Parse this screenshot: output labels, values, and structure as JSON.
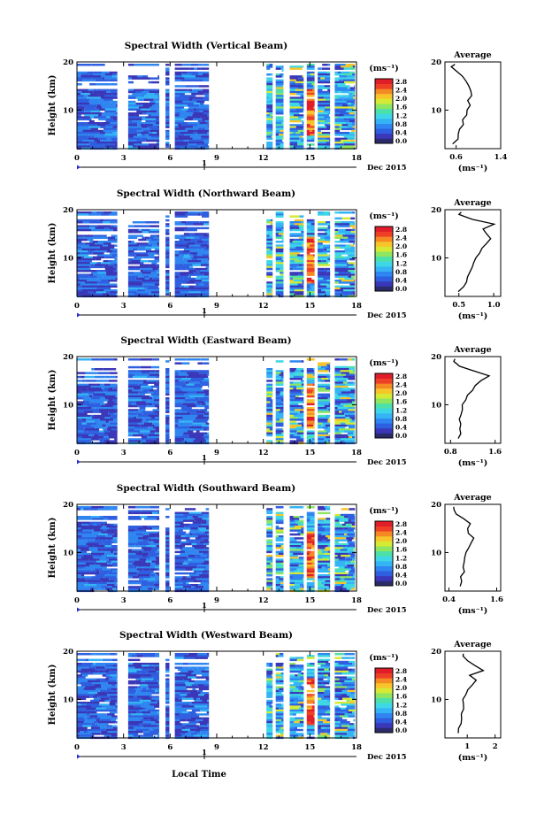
{
  "figure": {
    "xlabel": "Local Time",
    "date_label": "Dec 2015",
    "day_marker": "1",
    "colorbar_unit": "(ms⁻¹)",
    "colorbar_ticks": [
      "0.0",
      "0.4",
      "0.8",
      "1.2",
      "1.6",
      "2.0",
      "2.4",
      "2.8"
    ],
    "profile_title": "Average",
    "profile_xlabel": "(ms⁻¹)",
    "ylabel": "Height (km)",
    "colorscale": [
      "#2b2b6b",
      "#3a37b8",
      "#2f5fe0",
      "#2f86f0",
      "#35b4f5",
      "#3ed7e6",
      "#4de0a8",
      "#8ee660",
      "#d6ea35",
      "#f7c52a",
      "#f58a25",
      "#ee4027",
      "#e01e2a"
    ]
  },
  "chart_data": [
    {
      "type": "heatmap",
      "title": "Spectral Width (Vertical Beam)",
      "x_ticks": [
        "0",
        "3",
        "6",
        "9",
        "12",
        "15",
        "18"
      ],
      "x_tick_values": [
        0,
        3,
        6,
        9,
        12,
        15,
        18
      ],
      "y_ticks": [
        "10",
        "20"
      ],
      "y_tick_values": [
        10,
        20
      ],
      "xlim": [
        0,
        18
      ],
      "ylim": [
        2,
        20
      ],
      "clim": [
        0,
        3.0
      ],
      "data_segments_hours": [
        [
          0,
          2.6
        ],
        [
          3.3,
          5.3
        ],
        [
          5.7,
          5.95
        ],
        [
          6.3,
          8.5
        ],
        [
          12.2,
          12.6
        ],
        [
          12.8,
          13.3
        ],
        [
          13.7,
          14.6
        ],
        [
          14.8,
          15.3
        ],
        [
          15.5,
          16.3
        ],
        [
          16.6,
          17.9
        ]
      ],
      "profile": {
        "title": "Average",
        "x_ticks": [
          "0.6",
          "1.4"
        ],
        "x_tick_values": [
          0.6,
          1.4
        ],
        "xlim": [
          0.4,
          1.4
        ],
        "heights": [
          3,
          4,
          5,
          6,
          7,
          8,
          9,
          10,
          11,
          12,
          13,
          14,
          15,
          16,
          17,
          18,
          19,
          19.5
        ],
        "values": [
          0.55,
          0.62,
          0.66,
          0.66,
          0.72,
          0.74,
          0.77,
          0.8,
          0.83,
          0.81,
          0.88,
          0.84,
          0.83,
          0.78,
          0.72,
          0.6,
          0.52,
          0.6
        ]
      }
    },
    {
      "type": "heatmap",
      "title": "Spectral Width (Northward Beam)",
      "x_ticks": [
        "0",
        "3",
        "6",
        "9",
        "12",
        "15",
        "18"
      ],
      "x_tick_values": [
        0,
        3,
        6,
        9,
        12,
        15,
        18
      ],
      "y_ticks": [
        "10",
        "20"
      ],
      "y_tick_values": [
        10,
        20
      ],
      "xlim": [
        0,
        18
      ],
      "ylim": [
        2,
        20
      ],
      "clim": [
        0,
        3.0
      ],
      "data_segments_hours": [
        [
          0,
          2.6
        ],
        [
          3.3,
          5.3
        ],
        [
          5.7,
          5.95
        ],
        [
          6.3,
          8.5
        ],
        [
          12.2,
          12.6
        ],
        [
          12.8,
          13.3
        ],
        [
          13.7,
          14.6
        ],
        [
          14.8,
          15.3
        ],
        [
          15.5,
          16.3
        ],
        [
          16.6,
          17.9
        ]
      ],
      "profile": {
        "title": "Average",
        "x_ticks": [
          "0.5",
          "1.0"
        ],
        "x_tick_values": [
          0.5,
          1.0
        ],
        "xlim": [
          0.3,
          1.1
        ],
        "heights": [
          3,
          4,
          5,
          6,
          7,
          8,
          9,
          10,
          11,
          12,
          13,
          14,
          15,
          16,
          17,
          18,
          19,
          19.5
        ],
        "values": [
          0.5,
          0.55,
          0.6,
          0.62,
          0.66,
          0.68,
          0.72,
          0.75,
          0.8,
          0.83,
          0.88,
          0.95,
          0.9,
          0.85,
          1.0,
          0.7,
          0.5,
          0.55
        ]
      }
    },
    {
      "type": "heatmap",
      "title": "Spectral Width (Eastward Beam)",
      "x_ticks": [
        "0",
        "3",
        "6",
        "9",
        "12",
        "15",
        "18"
      ],
      "x_tick_values": [
        0,
        3,
        6,
        9,
        12,
        15,
        18
      ],
      "y_ticks": [
        "10",
        "20"
      ],
      "y_tick_values": [
        10,
        20
      ],
      "xlim": [
        0,
        18
      ],
      "ylim": [
        2,
        20
      ],
      "clim": [
        0,
        3.0
      ],
      "data_segments_hours": [
        [
          0,
          2.6
        ],
        [
          3.3,
          5.3
        ],
        [
          5.7,
          5.95
        ],
        [
          6.3,
          8.5
        ],
        [
          12.2,
          12.6
        ],
        [
          12.8,
          13.3
        ],
        [
          13.7,
          14.6
        ],
        [
          14.8,
          15.3
        ],
        [
          15.5,
          16.3
        ],
        [
          16.6,
          17.9
        ]
      ],
      "profile": {
        "title": "Average",
        "x_ticks": [
          "0.8",
          "1.6"
        ],
        "x_tick_values": [
          0.8,
          1.6
        ],
        "xlim": [
          0.7,
          1.7
        ],
        "heights": [
          3,
          4,
          5,
          6,
          7,
          8,
          9,
          10,
          11,
          12,
          13,
          14,
          15,
          16,
          17,
          18,
          19,
          19.5
        ],
        "values": [
          0.95,
          0.96,
          0.97,
          0.98,
          0.98,
          0.99,
          1.0,
          1.02,
          1.05,
          1.1,
          1.2,
          1.25,
          1.35,
          1.5,
          1.2,
          0.95,
          0.85,
          0.9
        ]
      }
    },
    {
      "type": "heatmap",
      "title": "Spectral Width (Southward Beam)",
      "x_ticks": [
        "0",
        "3",
        "6",
        "9",
        "12",
        "15",
        "18"
      ],
      "x_tick_values": [
        0,
        3,
        6,
        9,
        12,
        15,
        18
      ],
      "y_ticks": [
        "10",
        "20"
      ],
      "y_tick_values": [
        10,
        20
      ],
      "xlim": [
        0,
        18
      ],
      "ylim": [
        2,
        20
      ],
      "clim": [
        0,
        3.0
      ],
      "data_segments_hours": [
        [
          0,
          2.6
        ],
        [
          3.3,
          5.3
        ],
        [
          5.7,
          5.95
        ],
        [
          6.3,
          8.5
        ],
        [
          12.2,
          12.6
        ],
        [
          12.8,
          13.3
        ],
        [
          13.7,
          14.6
        ],
        [
          14.8,
          15.3
        ],
        [
          15.5,
          16.3
        ],
        [
          16.6,
          17.9
        ]
      ],
      "profile": {
        "title": "Average",
        "x_ticks": [
          "0.4",
          "1.6"
        ],
        "x_tick_values": [
          0.4,
          1.6
        ],
        "xlim": [
          0.3,
          1.7
        ],
        "heights": [
          3,
          4,
          5,
          6,
          7,
          8,
          9,
          10,
          11,
          12,
          13,
          14,
          15,
          16,
          17,
          18,
          19,
          19.5
        ],
        "values": [
          0.7,
          0.75,
          0.72,
          0.78,
          0.74,
          0.8,
          0.82,
          0.85,
          0.9,
          0.95,
          1.0,
          0.92,
          0.88,
          0.95,
          0.8,
          0.6,
          0.5,
          0.55
        ]
      }
    },
    {
      "type": "heatmap",
      "title": "Spectral Width (Westward Beam)",
      "x_ticks": [
        "0",
        "3",
        "6",
        "9",
        "12",
        "15",
        "18"
      ],
      "x_tick_values": [
        0,
        3,
        6,
        9,
        12,
        15,
        18
      ],
      "y_ticks": [
        "10",
        "20"
      ],
      "y_tick_values": [
        10,
        20
      ],
      "xlim": [
        0,
        18
      ],
      "ylim": [
        2,
        20
      ],
      "clim": [
        0,
        3.0
      ],
      "data_segments_hours": [
        [
          0,
          2.6
        ],
        [
          3.3,
          5.3
        ],
        [
          5.7,
          5.95
        ],
        [
          6.3,
          8.5
        ],
        [
          12.2,
          12.6
        ],
        [
          12.8,
          13.3
        ],
        [
          13.7,
          14.6
        ],
        [
          14.8,
          15.3
        ],
        [
          15.5,
          16.3
        ],
        [
          16.6,
          17.9
        ]
      ],
      "profile": {
        "title": "Average",
        "x_ticks": [
          "1",
          "2"
        ],
        "x_tick_values": [
          1,
          2
        ],
        "xlim": [
          0.2,
          2.2
        ],
        "heights": [
          3,
          4,
          5,
          6,
          7,
          8,
          9,
          10,
          11,
          12,
          13,
          14,
          15,
          16,
          17,
          18,
          19,
          19.5
        ],
        "values": [
          0.7,
          0.72,
          0.75,
          0.78,
          0.8,
          0.82,
          0.85,
          0.88,
          0.9,
          1.0,
          1.2,
          1.3,
          1.1,
          1.6,
          1.3,
          1.0,
          0.8,
          0.9
        ]
      }
    }
  ]
}
